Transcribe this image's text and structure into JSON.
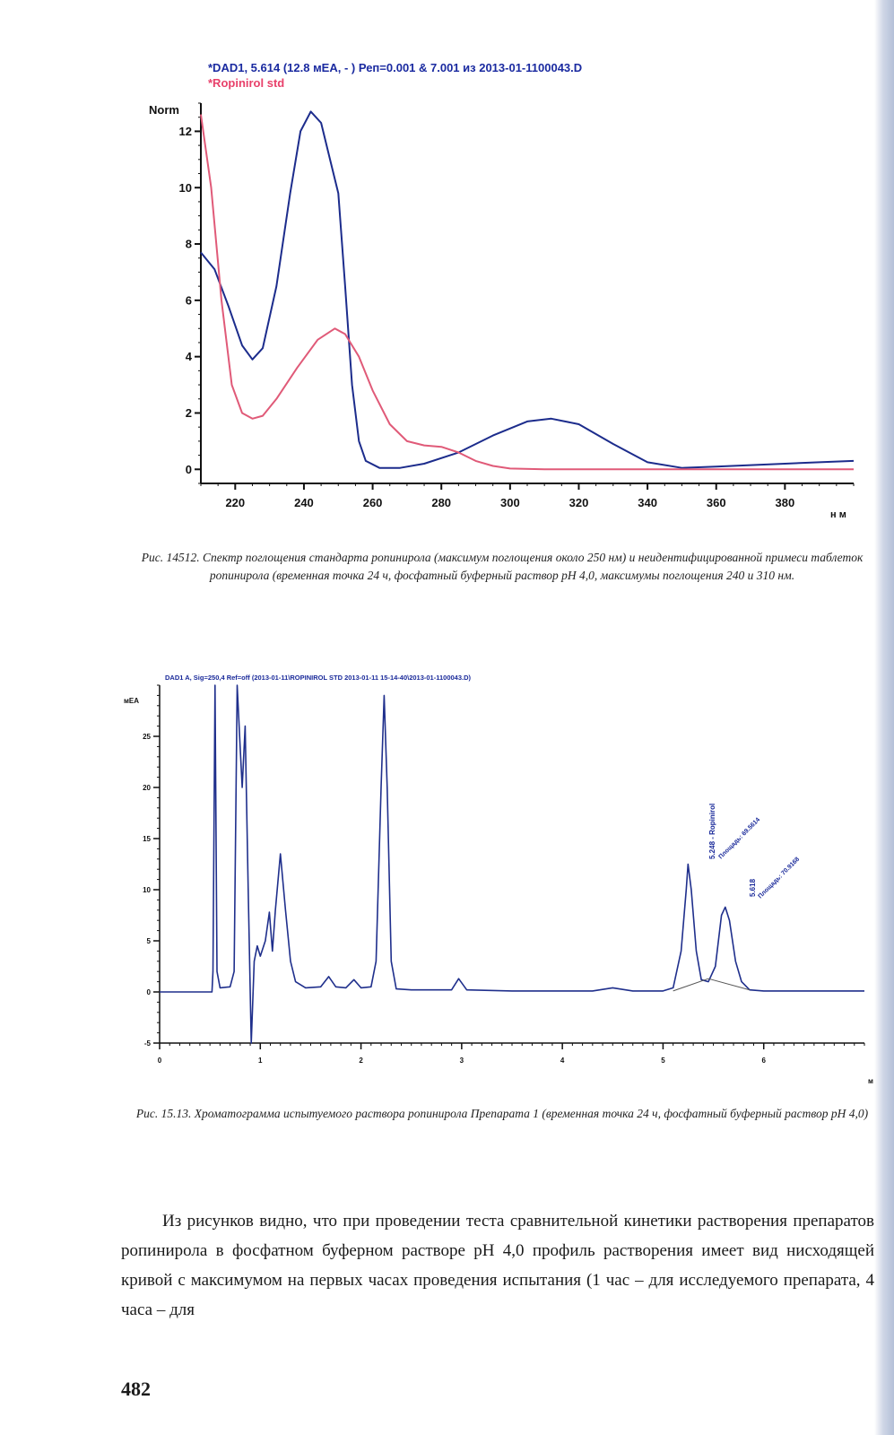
{
  "figure1": {
    "title_line1": "*DAD1, 5.614 (12.8 мЕА, - ) Реп=0.001 & 7.001 из 2013-01-1100043.D",
    "title_line2": "*Ropinirol std",
    "y_axis_label": "Norm",
    "x_axis_unit": "н м",
    "caption": "Рис. 14512. Спектр поглощения стандарта ропинирола (максимум поглощения около 250 нм) и неидентифицированной примеси таблеток ропинирола (временная точка 24 ч, фосфатный буферный раствор рН 4,0, максимумы поглощения 240 и 310 нм.",
    "colors": {
      "series_blue": "#1c2c8c",
      "series_red": "#e05a78",
      "title_blue": "#1a2aa0",
      "title_red": "#e8406a"
    },
    "chart_data": {
      "type": "line",
      "xlim": [
        210,
        400
      ],
      "ylim": [
        -0.5,
        13
      ],
      "x_ticks": [
        220,
        240,
        260,
        280,
        300,
        320,
        340,
        360,
        380
      ],
      "y_ticks": [
        0,
        2,
        4,
        6,
        8,
        10,
        12
      ],
      "series": [
        {
          "points": [
            [
              210,
              7.7
            ],
            [
              214,
              7.1
            ],
            [
              218,
              5.8
            ],
            [
              222,
              4.4
            ],
            [
              225,
              3.9
            ],
            [
              228,
              4.3
            ],
            [
              232,
              6.5
            ],
            [
              236,
              9.8
            ],
            [
              239,
              12.0
            ],
            [
              242,
              12.7
            ],
            [
              245,
              12.3
            ],
            [
              248,
              10.8
            ],
            [
              250,
              9.8
            ],
            [
              252,
              6.5
            ],
            [
              254,
              3.0
            ],
            [
              256,
              1.0
            ],
            [
              258,
              0.3
            ],
            [
              262,
              0.05
            ],
            [
              268,
              0.05
            ],
            [
              275,
              0.2
            ],
            [
              285,
              0.6
            ],
            [
              295,
              1.2
            ],
            [
              305,
              1.7
            ],
            [
              312,
              1.8
            ],
            [
              320,
              1.6
            ],
            [
              330,
              0.9
            ],
            [
              340,
              0.25
            ],
            [
              350,
              0.05
            ],
            [
              360,
              0.1
            ],
            [
              370,
              0.15
            ],
            [
              380,
              0.2
            ],
            [
              390,
              0.25
            ],
            [
              400,
              0.3
            ]
          ]
        },
        {
          "points": [
            [
              210,
              12.6
            ],
            [
              213,
              10.0
            ],
            [
              216,
              6.0
            ],
            [
              219,
              3.0
            ],
            [
              222,
              2.0
            ],
            [
              225,
              1.8
            ],
            [
              228,
              1.9
            ],
            [
              232,
              2.5
            ],
            [
              238,
              3.6
            ],
            [
              244,
              4.6
            ],
            [
              249,
              5.0
            ],
            [
              252,
              4.8
            ],
            [
              256,
              4.0
            ],
            [
              260,
              2.8
            ],
            [
              265,
              1.6
            ],
            [
              270,
              1.0
            ],
            [
              275,
              0.85
            ],
            [
              280,
              0.8
            ],
            [
              285,
              0.6
            ],
            [
              290,
              0.3
            ],
            [
              295,
              0.12
            ],
            [
              300,
              0.03
            ],
            [
              310,
              0.0
            ],
            [
              350,
              0.0
            ],
            [
              400,
              0.0
            ]
          ]
        }
      ]
    }
  },
  "figure2": {
    "title": "DAD1 A, Sig=250,4 Ref=off (2013-01-11\\ROPINIROL STD 2013-01-11 15-14-40\\2013-01-1100043.D)",
    "y_axis_label": "мЕА",
    "x_axis_unit": "м",
    "peak_labels": [
      "5.248 - Ropinirol",
      "Площадь: 69.5614",
      "5.618",
      "Площадь: 70.9168"
    ],
    "caption": "Рис. 15.13. Хроматограмма испытуемого раствора ропинирола Препарата 1 (временная точка 24 ч, фосфатный буферный раствор рН 4,0)",
    "colors": {
      "trace": "#1f2f8c",
      "baseline": "#555555"
    },
    "chart_data": {
      "type": "line",
      "xlim": [
        0,
        7
      ],
      "ylim": [
        -5,
        30
      ],
      "x_ticks": [
        0,
        1,
        2,
        3,
        4,
        5,
        6
      ],
      "y_ticks": [
        -5,
        0,
        5,
        10,
        15,
        20,
        25
      ],
      "series": [
        {
          "points": [
            [
              0,
              0
            ],
            [
              0.52,
              0
            ],
            [
              0.53,
              2
            ],
            [
              0.55,
              30
            ],
            [
              0.57,
              2
            ],
            [
              0.6,
              0.4
            ],
            [
              0.7,
              0.5
            ],
            [
              0.74,
              2
            ],
            [
              0.77,
              30
            ],
            [
              0.8,
              24
            ],
            [
              0.82,
              20
            ],
            [
              0.85,
              26
            ],
            [
              0.88,
              10
            ],
            [
              0.91,
              -5
            ],
            [
              0.94,
              3
            ],
            [
              0.97,
              4.5
            ],
            [
              1.0,
              3.5
            ],
            [
              1.05,
              5
            ],
            [
              1.09,
              7.8
            ],
            [
              1.12,
              4
            ],
            [
              1.15,
              8
            ],
            [
              1.2,
              13.5
            ],
            [
              1.25,
              8
            ],
            [
              1.3,
              3
            ],
            [
              1.35,
              1
            ],
            [
              1.45,
              0.4
            ],
            [
              1.6,
              0.5
            ],
            [
              1.68,
              1.5
            ],
            [
              1.75,
              0.5
            ],
            [
              1.85,
              0.4
            ],
            [
              1.93,
              1.2
            ],
            [
              2.0,
              0.4
            ],
            [
              2.1,
              0.5
            ],
            [
              2.15,
              3
            ],
            [
              2.2,
              20
            ],
            [
              2.23,
              29
            ],
            [
              2.26,
              20
            ],
            [
              2.3,
              3
            ],
            [
              2.35,
              0.3
            ],
            [
              2.5,
              0.2
            ],
            [
              2.9,
              0.2
            ],
            [
              2.97,
              1.3
            ],
            [
              3.05,
              0.2
            ],
            [
              3.5,
              0.1
            ],
            [
              4.3,
              0.1
            ],
            [
              4.5,
              0.4
            ],
            [
              4.7,
              0.1
            ],
            [
              5.0,
              0.1
            ],
            [
              5.1,
              0.4
            ],
            [
              5.18,
              4
            ],
            [
              5.23,
              10
            ],
            [
              5.248,
              12.5
            ],
            [
              5.28,
              10
            ],
            [
              5.33,
              4
            ],
            [
              5.38,
              1.2
            ],
            [
              5.45,
              1.0
            ],
            [
              5.52,
              2.5
            ],
            [
              5.58,
              7.5
            ],
            [
              5.618,
              8.3
            ],
            [
              5.66,
              7
            ],
            [
              5.72,
              3
            ],
            [
              5.78,
              1
            ],
            [
              5.86,
              0.2
            ],
            [
              6.0,
              0.1
            ],
            [
              7.0,
              0.1
            ]
          ]
        }
      ],
      "baseline_segments": [
        [
          [
            5.1,
            0.1
          ],
          [
            5.45,
            1.3
          ]
        ],
        [
          [
            5.45,
            1.3
          ],
          [
            5.86,
            0.2
          ]
        ]
      ]
    }
  },
  "body_text": "Из рисунков видно, что при проведении теста сравнительной кинетики растворения препаратов ропинирола в фосфатном буферном растворе рН 4,0 профиль растворения имеет вид нисходящей кривой с максимумом на первых часах проведения испытания (1 час – для исследуемого препарата, 4 часа – для",
  "page_number": "482"
}
